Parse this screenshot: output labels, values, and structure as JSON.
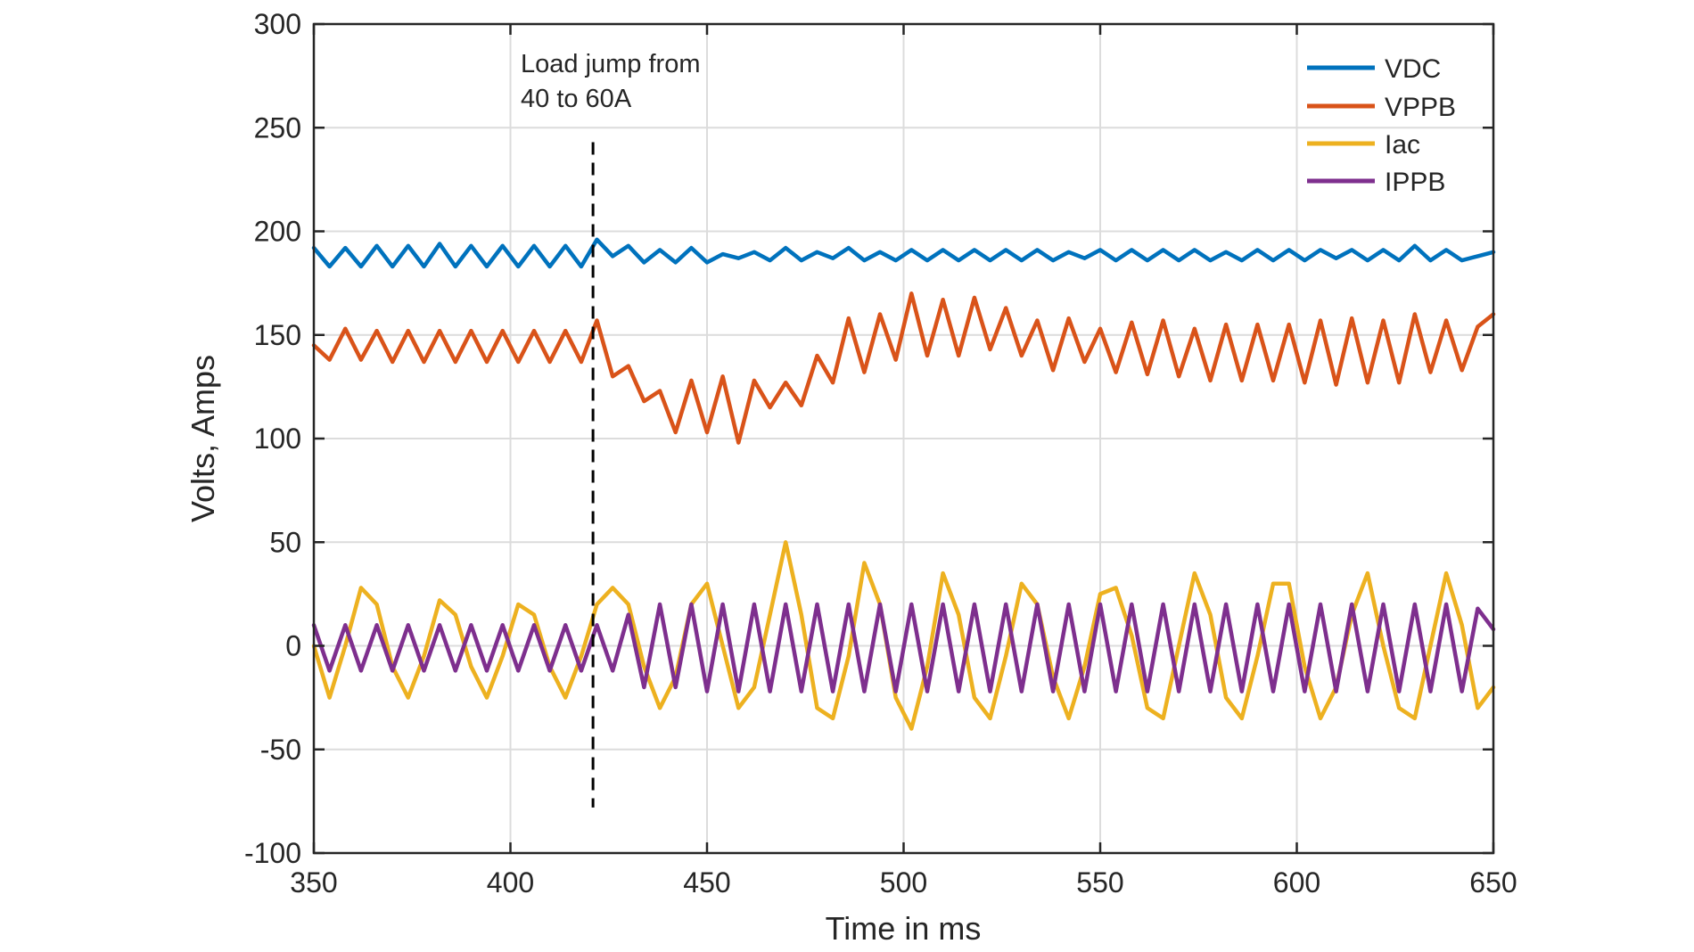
{
  "chart_data": {
    "type": "line",
    "title": "",
    "xlabel": "Time in ms",
    "ylabel": "Volts, Amps",
    "xlim": [
      350,
      650
    ],
    "ylim": [
      -100,
      300
    ],
    "xticks": [
      350,
      400,
      450,
      500,
      550,
      600,
      650
    ],
    "yticks": [
      -100,
      -50,
      0,
      50,
      100,
      150,
      200,
      250,
      300
    ],
    "xtick_labels": [
      "350",
      "400",
      "450",
      "500",
      "550",
      "600",
      "650"
    ],
    "ytick_labels": [
      "-100",
      "-50",
      "0",
      "50",
      "100",
      "150",
      "200",
      "250",
      "300"
    ],
    "grid": true,
    "legend_position": "top-right",
    "annotation": {
      "lines": [
        "Load jump from",
        "40 to 60A"
      ],
      "event_x": 421,
      "dashed_line_y_range": [
        -78,
        243
      ]
    },
    "series": [
      {
        "name": "VDC",
        "color": "#0072BD",
        "x": [
          350,
          354,
          358,
          362,
          366,
          370,
          374,
          378,
          382,
          386,
          390,
          394,
          398,
          402,
          406,
          410,
          414,
          418,
          422,
          426,
          430,
          434,
          438,
          442,
          446,
          450,
          454,
          458,
          462,
          466,
          470,
          474,
          478,
          482,
          486,
          490,
          494,
          498,
          502,
          506,
          510,
          514,
          518,
          522,
          526,
          530,
          534,
          538,
          542,
          546,
          550,
          554,
          558,
          562,
          566,
          570,
          574,
          578,
          582,
          586,
          590,
          594,
          598,
          602,
          606,
          610,
          614,
          618,
          622,
          626,
          630,
          634,
          638,
          642,
          646,
          650
        ],
        "y": [
          192,
          183,
          192,
          183,
          193,
          183,
          193,
          183,
          194,
          183,
          193,
          183,
          193,
          183,
          193,
          183,
          193,
          183,
          196,
          188,
          193,
          185,
          191,
          185,
          192,
          185,
          189,
          187,
          190,
          186,
          192,
          186,
          190,
          187,
          192,
          186,
          190,
          186,
          191,
          186,
          191,
          186,
          191,
          186,
          191,
          186,
          191,
          186,
          190,
          187,
          191,
          186,
          191,
          186,
          191,
          186,
          191,
          186,
          190,
          186,
          191,
          186,
          191,
          186,
          191,
          187,
          191,
          186,
          191,
          186,
          193,
          186,
          191,
          186,
          188,
          190
        ]
      },
      {
        "name": "VPPB",
        "color": "#D95319",
        "x": [
          350,
          354,
          358,
          362,
          366,
          370,
          374,
          378,
          382,
          386,
          390,
          394,
          398,
          402,
          406,
          410,
          414,
          418,
          422,
          426,
          430,
          434,
          438,
          442,
          446,
          450,
          454,
          458,
          462,
          466,
          470,
          474,
          478,
          482,
          486,
          490,
          494,
          498,
          502,
          506,
          510,
          514,
          518,
          522,
          526,
          530,
          534,
          538,
          542,
          546,
          550,
          554,
          558,
          562,
          566,
          570,
          574,
          578,
          582,
          586,
          590,
          594,
          598,
          602,
          606,
          610,
          614,
          618,
          622,
          626,
          630,
          634,
          638,
          642,
          646,
          650
        ],
        "y": [
          145,
          138,
          153,
          138,
          152,
          137,
          152,
          137,
          152,
          137,
          152,
          137,
          152,
          137,
          152,
          137,
          152,
          137,
          157,
          130,
          135,
          118,
          123,
          103,
          128,
          103,
          130,
          98,
          128,
          115,
          127,
          116,
          140,
          127,
          158,
          132,
          160,
          138,
          170,
          140,
          167,
          140,
          168,
          143,
          163,
          140,
          157,
          133,
          158,
          137,
          153,
          132,
          156,
          131,
          157,
          130,
          153,
          128,
          155,
          128,
          155,
          128,
          155,
          127,
          157,
          126,
          158,
          127,
          157,
          127,
          160,
          132,
          157,
          133,
          154,
          160
        ]
      },
      {
        "name": "Iac",
        "color": "#EDB120",
        "x": [
          350,
          354,
          358,
          362,
          366,
          370,
          374,
          378,
          382,
          386,
          390,
          394,
          398,
          402,
          406,
          410,
          414,
          418,
          422,
          426,
          430,
          434,
          438,
          442,
          446,
          450,
          454,
          458,
          462,
          466,
          470,
          474,
          478,
          482,
          486,
          490,
          494,
          498,
          502,
          506,
          510,
          514,
          518,
          522,
          526,
          530,
          534,
          538,
          542,
          546,
          550,
          554,
          558,
          562,
          566,
          570,
          574,
          578,
          582,
          586,
          590,
          594,
          598,
          602,
          606,
          610,
          614,
          618,
          622,
          626,
          630,
          634,
          638,
          642,
          646,
          650
        ],
        "y": [
          0,
          -25,
          0,
          28,
          20,
          -10,
          -25,
          -5,
          22,
          15,
          -10,
          -25,
          -5,
          20,
          15,
          -10,
          -25,
          -5,
          20,
          28,
          20,
          -10,
          -30,
          -15,
          20,
          30,
          0,
          -30,
          -20,
          15,
          50,
          15,
          -30,
          -35,
          -5,
          40,
          20,
          -25,
          -40,
          -10,
          35,
          15,
          -25,
          -35,
          -5,
          30,
          20,
          -15,
          -35,
          -10,
          25,
          28,
          5,
          -30,
          -35,
          0,
          35,
          15,
          -25,
          -35,
          -5,
          30,
          30,
          -10,
          -35,
          -20,
          15,
          35,
          0,
          -30,
          -35,
          0,
          35,
          10,
          -30,
          -20
        ]
      },
      {
        "name": "IPPB",
        "color": "#7E2F8E",
        "x": [
          350,
          354,
          358,
          362,
          366,
          370,
          374,
          378,
          382,
          386,
          390,
          394,
          398,
          402,
          406,
          410,
          414,
          418,
          422,
          426,
          430,
          434,
          438,
          442,
          446,
          450,
          454,
          458,
          462,
          466,
          470,
          474,
          478,
          482,
          486,
          490,
          494,
          498,
          502,
          506,
          510,
          514,
          518,
          522,
          526,
          530,
          534,
          538,
          542,
          546,
          550,
          554,
          558,
          562,
          566,
          570,
          574,
          578,
          582,
          586,
          590,
          594,
          598,
          602,
          606,
          610,
          614,
          618,
          622,
          626,
          630,
          634,
          638,
          642,
          646,
          650
        ],
        "y": [
          10,
          -12,
          10,
          -12,
          10,
          -12,
          10,
          -12,
          10,
          -12,
          10,
          -12,
          10,
          -12,
          10,
          -12,
          10,
          -12,
          10,
          -12,
          15,
          -20,
          20,
          -20,
          20,
          -22,
          20,
          -22,
          20,
          -22,
          20,
          -22,
          20,
          -22,
          20,
          -22,
          20,
          -22,
          20,
          -22,
          20,
          -22,
          20,
          -22,
          20,
          -22,
          20,
          -22,
          20,
          -22,
          20,
          -22,
          20,
          -22,
          20,
          -22,
          20,
          -22,
          20,
          -22,
          20,
          -22,
          20,
          -22,
          20,
          -22,
          20,
          -22,
          20,
          -22,
          20,
          -22,
          20,
          -22,
          18,
          8
        ]
      }
    ]
  }
}
